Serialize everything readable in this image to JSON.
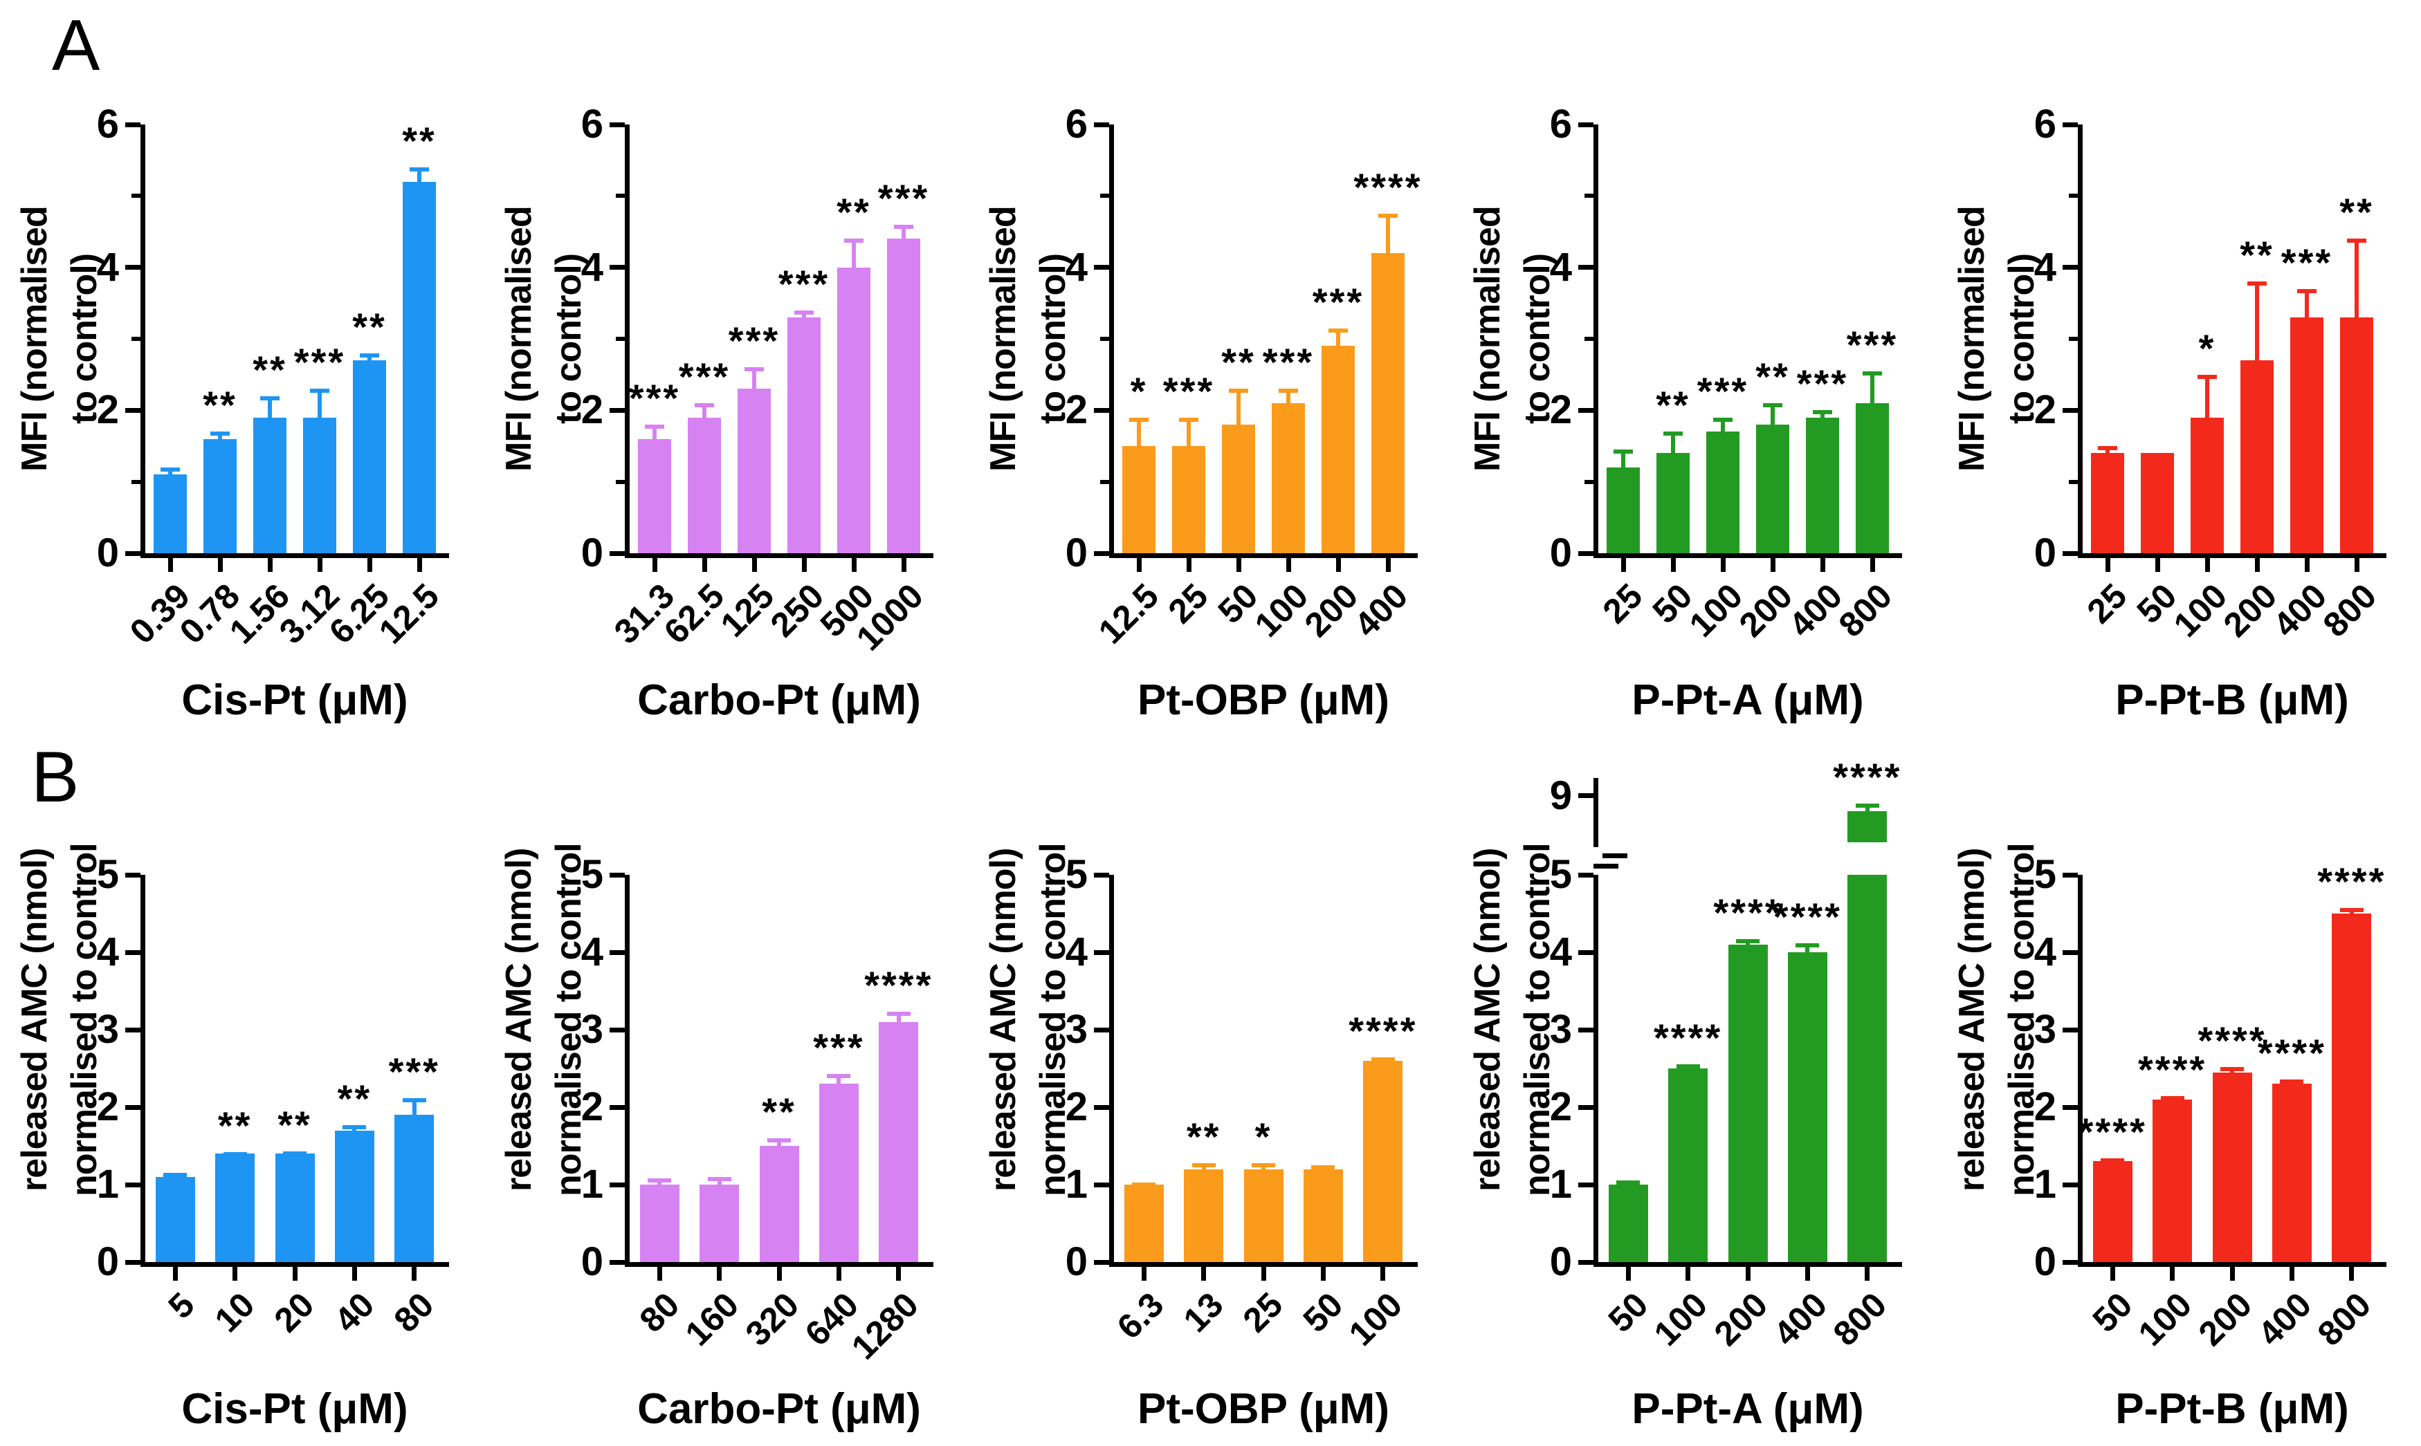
{
  "figure": {
    "panels": [
      {
        "label": "A",
        "ylabel": [
          "MFI (normalised",
          "to control)"
        ]
      },
      {
        "label": "B",
        "ylabel": [
          "released AMC (nmol)",
          "normalised to control"
        ]
      }
    ]
  },
  "colors": {
    "blue": "#1E95F2",
    "violet": "#D782F2",
    "orange": "#FA9B1B",
    "green": "#239B23",
    "red": "#F32A1B",
    "axis": "#000000"
  },
  "chart_data": [
    {
      "type": "bar",
      "panel": "A",
      "xlabel": "Cis-Pt (μM)",
      "ylabel": "MFI (normalised to control)",
      "bar_color": "#1E95F2",
      "ylim": [
        0,
        6
      ],
      "yticks": [
        0,
        2,
        4,
        6
      ],
      "yticks_minor": [
        1,
        3,
        5
      ],
      "categories": [
        "0.39",
        "0.78",
        "1.56",
        "3.12",
        "6.25",
        "12.5"
      ],
      "values": [
        1.1,
        1.6,
        1.9,
        1.9,
        2.7,
        5.2
      ],
      "errors": [
        0.1,
        0.1,
        0.3,
        0.4,
        0.1,
        0.2
      ],
      "significance": [
        "",
        "**",
        "**",
        "***",
        "**",
        "**"
      ]
    },
    {
      "type": "bar",
      "panel": "A",
      "xlabel": "Carbo-Pt (μM)",
      "ylabel": "MFI (normalised to control)",
      "bar_color": "#D782F2",
      "ylim": [
        0,
        6
      ],
      "yticks": [
        0,
        2,
        4,
        6
      ],
      "yticks_minor": [
        1,
        3,
        5
      ],
      "categories": [
        "31.3",
        "62.5",
        "125",
        "250",
        "500",
        "1000"
      ],
      "values": [
        1.6,
        1.9,
        2.3,
        3.3,
        4.0,
        4.4
      ],
      "errors": [
        0.2,
        0.2,
        0.3,
        0.1,
        0.4,
        0.2
      ],
      "significance": [
        "***",
        "***",
        "***",
        "***",
        "**",
        "***"
      ]
    },
    {
      "type": "bar",
      "panel": "A",
      "xlabel": "Pt-OBP (μM)",
      "ylabel": "MFI (normalised to control)",
      "bar_color": "#FA9B1B",
      "ylim": [
        0,
        6
      ],
      "yticks": [
        0,
        2,
        4,
        6
      ],
      "yticks_minor": [
        1,
        3,
        5
      ],
      "categories": [
        "12.5",
        "25",
        "50",
        "100",
        "200",
        "400"
      ],
      "values": [
        1.5,
        1.5,
        1.8,
        2.1,
        2.9,
        4.2
      ],
      "errors": [
        0.4,
        0.4,
        0.5,
        0.2,
        0.25,
        0.55
      ],
      "significance": [
        "*",
        "***",
        "**",
        "***",
        "***",
        "****"
      ]
    },
    {
      "type": "bar",
      "panel": "A",
      "xlabel": "P-Pt-A (μM)",
      "ylabel": "MFI (normalised to control)",
      "bar_color": "#239B23",
      "ylim": [
        0,
        6
      ],
      "yticks": [
        0,
        2,
        4,
        6
      ],
      "yticks_minor": [
        1,
        3,
        5
      ],
      "categories": [
        "25",
        "50",
        "100",
        "200",
        "400",
        "800"
      ],
      "values": [
        1.2,
        1.4,
        1.7,
        1.8,
        1.9,
        2.1
      ],
      "errors": [
        0.25,
        0.3,
        0.2,
        0.3,
        0.1,
        0.45
      ],
      "significance": [
        "",
        "**",
        "***",
        "**",
        "***",
        "***"
      ]
    },
    {
      "type": "bar",
      "panel": "A",
      "xlabel": "P-Pt-B (μM)",
      "ylabel": "MFI (normalised to control)",
      "bar_color": "#F32A1B",
      "ylim": [
        0,
        6
      ],
      "yticks": [
        0,
        2,
        4,
        6
      ],
      "yticks_minor": [
        1,
        3,
        5
      ],
      "categories": [
        "25",
        "50",
        "100",
        "200",
        "400",
        "800"
      ],
      "values": [
        1.4,
        1.4,
        1.9,
        2.7,
        3.3,
        3.3
      ],
      "errors": [
        0.1,
        0,
        0.6,
        1.1,
        0.4,
        1.1
      ],
      "significance": [
        "",
        "",
        "*",
        "**",
        "***",
        "**"
      ]
    },
    {
      "type": "bar",
      "panel": "B",
      "xlabel": "Cis-Pt (μM)",
      "ylabel": "released AMC (nmol) normalised to control",
      "bar_color": "#1E95F2",
      "ylim": [
        0,
        5
      ],
      "yticks": [
        0,
        1,
        2,
        3,
        4,
        5
      ],
      "categories": [
        "5",
        "10",
        "20",
        "40",
        "80"
      ],
      "values": [
        1.1,
        1.4,
        1.4,
        1.7,
        1.9
      ],
      "errors": [
        0.05,
        0.02,
        0.03,
        0.07,
        0.22
      ],
      "significance": [
        "",
        "**",
        "**",
        "**",
        "***"
      ]
    },
    {
      "type": "bar",
      "panel": "B",
      "xlabel": "Carbo-Pt (μM)",
      "ylabel": "released AMC (nmol) normalised to control",
      "bar_color": "#D782F2",
      "ylim": [
        0,
        5
      ],
      "yticks": [
        0,
        1,
        2,
        3,
        4,
        5
      ],
      "categories": [
        "80",
        "160",
        "320",
        "640",
        "1280"
      ],
      "values": [
        1.0,
        1.0,
        1.5,
        2.3,
        3.1
      ],
      "errors": [
        0.08,
        0.1,
        0.1,
        0.13,
        0.13
      ],
      "significance": [
        "",
        "",
        "**",
        "***",
        "****"
      ]
    },
    {
      "type": "bar",
      "panel": "B",
      "xlabel": "Pt-OBP (μM)",
      "ylabel": "released AMC (nmol) normalised to control",
      "bar_color": "#FA9B1B",
      "ylim": [
        0,
        5
      ],
      "yticks": [
        0,
        1,
        2,
        3,
        4,
        5
      ],
      "categories": [
        "6.3",
        "13",
        "25",
        "50",
        "100"
      ],
      "values": [
        1.0,
        1.2,
        1.2,
        1.2,
        2.6
      ],
      "errors": [
        0.03,
        0.08,
        0.08,
        0.05,
        0.04
      ],
      "significance": [
        "",
        "**",
        "*",
        "",
        "****"
      ]
    },
    {
      "type": "bar",
      "panel": "B",
      "xlabel": "P-Pt-A (μM)",
      "ylabel": "released AMC (nmol) normalised to control",
      "bar_color": "#239B23",
      "ylim": [
        0,
        9.35
      ],
      "yticks": [
        0,
        1,
        2,
        3,
        4,
        5
      ],
      "axis_break": {
        "lower_max": 5,
        "upper_min": 8,
        "upper_max": 9.35,
        "upper_tick": 9
      },
      "categories": [
        "50",
        "100",
        "200",
        "400",
        "800"
      ],
      "values": [
        1.0,
        2.5,
        4.1,
        4.0,
        8.7
      ],
      "errors": [
        0.05,
        0.05,
        0.07,
        0.12,
        0.15
      ],
      "significance": [
        "",
        "****",
        "****",
        "****",
        "****"
      ]
    },
    {
      "type": "bar",
      "panel": "B",
      "xlabel": "P-Pt-B (μM)",
      "ylabel": "released AMC (nmol) normalised to control",
      "bar_color": "#F32A1B",
      "ylim": [
        0,
        5
      ],
      "yticks": [
        0,
        1,
        2,
        3,
        4,
        5
      ],
      "categories": [
        "50",
        "100",
        "200",
        "400",
        "800"
      ],
      "values": [
        1.3,
        2.1,
        2.45,
        2.3,
        4.5
      ],
      "errors": [
        0.04,
        0.04,
        0.07,
        0.06,
        0.07
      ],
      "significance": [
        "****",
        "****",
        "****",
        "****",
        "****"
      ]
    }
  ]
}
